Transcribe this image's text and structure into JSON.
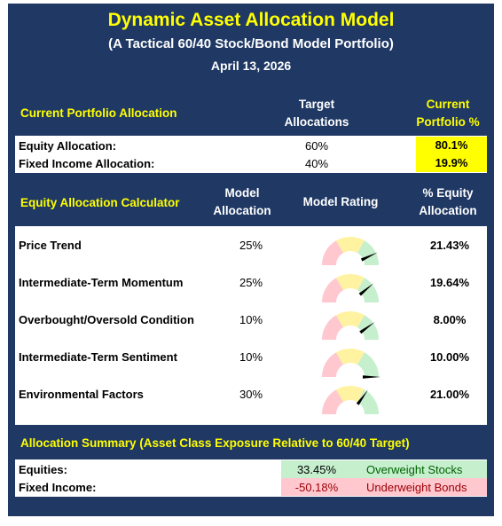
{
  "header": {
    "title": "Dynamic Asset Allocation Model",
    "subtitle": "(A Tactical 60/40 Stock/Bond Model Portfolio)",
    "date": "April 13, 2026"
  },
  "portfolio": {
    "section_label": "Current Portfolio Allocation",
    "col_target_1": "Target",
    "col_target_2": "Allocations",
    "col_current_1": "Current",
    "col_current_2": "Portfolio %",
    "rows": [
      {
        "label": "Equity Allocation:",
        "target": "60%",
        "current": "80.1%"
      },
      {
        "label": "Fixed Income Allocation:",
        "target": "40%",
        "current": "19.9%"
      }
    ]
  },
  "calculator": {
    "section_label": "Equity Allocation Calculator",
    "col_model_1": "Model",
    "col_model_2": "Allocation",
    "col_rating": "Model Rating",
    "col_equity_1": "% Equity",
    "col_equity_2": "Allocation",
    "rows": [
      {
        "label": "Price Trend",
        "allocation": "25%",
        "equity": "21.43%",
        "gauge_level": 0.86
      },
      {
        "label": "Intermediate-Term Momentum",
        "allocation": "25%",
        "equity": "19.64%",
        "gauge_level": 0.78
      },
      {
        "label": "Overbought/Oversold Condition",
        "allocation": "10%",
        "equity": "8.00%",
        "gauge_level": 0.8
      },
      {
        "label": "Intermediate-Term Sentiment",
        "allocation": "10%",
        "equity": "10.00%",
        "gauge_level": 1.0
      },
      {
        "label": "Environmental Factors",
        "allocation": "30%",
        "equity": "21.00%",
        "gauge_level": 0.7
      }
    ]
  },
  "summary": {
    "section_label": "Allocation Summary (Asset Class Exposure Relative to 60/40 Target)",
    "rows": [
      {
        "label": "Equities:",
        "value": "33.45%",
        "status": "Overweight Stocks"
      },
      {
        "label": "Fixed Income:",
        "value": "-50.18%",
        "status": "Underweight Bonds"
      }
    ]
  },
  "colors": {
    "background": "#1f3864",
    "accent": "#ffff00",
    "gauge_red": "#ffc7ce",
    "gauge_yellow": "#fff2a0",
    "gauge_green": "#c6efce",
    "overweight": "#c6efce",
    "underweight": "#ffc7ce"
  }
}
